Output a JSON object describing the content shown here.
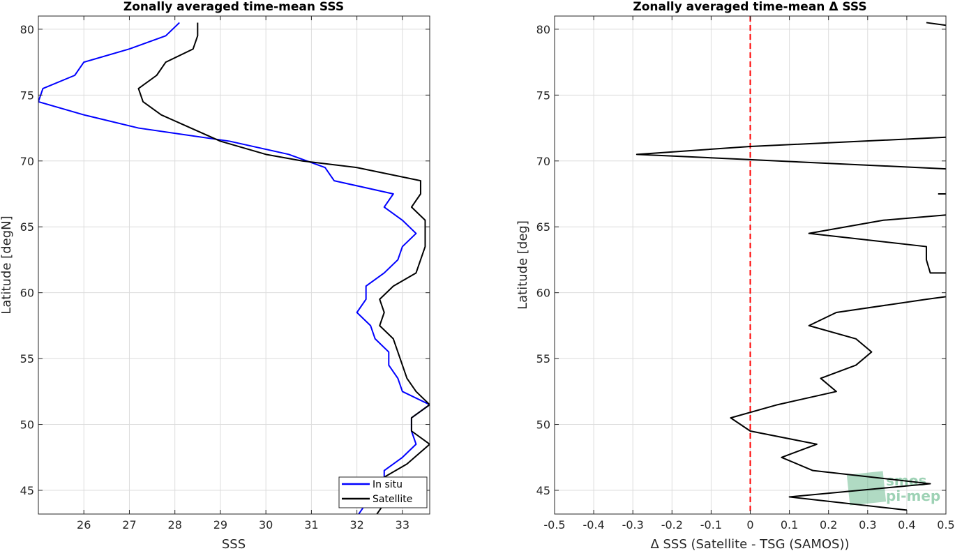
{
  "chart_data": [
    {
      "type": "line",
      "title": "Zonally averaged time-mean SSS",
      "xlabel": "SSS",
      "ylabel": "Latitude [degN]",
      "xlim": [
        25,
        33.6
      ],
      "ylim": [
        43.2,
        81
      ],
      "xticks": [
        26,
        27,
        28,
        29,
        30,
        31,
        32,
        33
      ],
      "yticks": [
        45,
        50,
        55,
        60,
        65,
        70,
        75,
        80
      ],
      "grid": true,
      "legend_position": "bottom-right",
      "series": [
        {
          "name": "In situ",
          "color": "#0000ff",
          "points": [
            [
              32.0,
              43.0
            ],
            [
              32.2,
              44.0
            ],
            [
              32.5,
              44.5
            ],
            [
              32.6,
              45.5
            ],
            [
              32.6,
              46.5
            ],
            [
              33.0,
              47.5
            ],
            [
              33.3,
              48.5
            ],
            [
              33.2,
              49.5
            ],
            [
              33.2,
              50.5
            ],
            [
              33.6,
              51.5
            ],
            [
              33.0,
              52.5
            ],
            [
              32.9,
              53.5
            ],
            [
              32.7,
              54.5
            ],
            [
              32.7,
              55.5
            ],
            [
              32.4,
              56.5
            ],
            [
              32.3,
              57.5
            ],
            [
              32.0,
              58.5
            ],
            [
              32.2,
              59.5
            ],
            [
              32.2,
              60.5
            ],
            [
              32.6,
              61.5
            ],
            [
              32.9,
              62.5
            ],
            [
              33.0,
              63.5
            ],
            [
              33.3,
              64.5
            ],
            [
              33.0,
              65.5
            ],
            [
              32.6,
              66.5
            ],
            [
              32.8,
              67.5
            ],
            [
              31.5,
              68.5
            ],
            [
              31.3,
              69.5
            ],
            [
              30.5,
              70.5
            ],
            [
              29.2,
              71.5
            ],
            [
              27.2,
              72.5
            ],
            [
              26.0,
              73.5
            ],
            [
              25.0,
              74.5
            ],
            [
              25.1,
              75.5
            ],
            [
              25.8,
              76.5
            ],
            [
              26.0,
              77.5
            ],
            [
              27.0,
              78.5
            ],
            [
              27.8,
              79.5
            ],
            [
              28.1,
              80.5
            ]
          ]
        },
        {
          "name": "Satellite",
          "color": "#000000",
          "points": [
            [
              32.4,
              43.0
            ],
            [
              32.6,
              44.0
            ],
            [
              32.5,
              45.0
            ],
            [
              32.6,
              46.0
            ],
            [
              33.1,
              47.0
            ],
            [
              33.6,
              48.5
            ],
            [
              33.2,
              49.5
            ],
            [
              33.2,
              50.5
            ],
            [
              33.6,
              51.5
            ],
            [
              33.3,
              52.5
            ],
            [
              33.1,
              53.5
            ],
            [
              33.0,
              54.5
            ],
            [
              32.9,
              55.5
            ],
            [
              32.8,
              56.5
            ],
            [
              32.5,
              57.5
            ],
            [
              32.6,
              58.5
            ],
            [
              32.5,
              59.5
            ],
            [
              32.8,
              60.5
            ],
            [
              33.3,
              61.5
            ],
            [
              33.4,
              62.5
            ],
            [
              33.5,
              63.5
            ],
            [
              33.5,
              64.5
            ],
            [
              33.5,
              65.5
            ],
            [
              33.2,
              66.5
            ],
            [
              33.4,
              67.5
            ],
            [
              33.4,
              68.5
            ],
            [
              32.0,
              69.5
            ],
            [
              30.8,
              70.0
            ],
            [
              30.0,
              70.5
            ],
            [
              29.0,
              71.5
            ],
            [
              27.7,
              73.5
            ],
            [
              27.3,
              74.5
            ],
            [
              27.2,
              75.5
            ],
            [
              27.6,
              76.5
            ],
            [
              27.8,
              77.5
            ],
            [
              28.4,
              78.5
            ],
            [
              28.5,
              79.5
            ],
            [
              28.5,
              80.5
            ]
          ]
        }
      ]
    },
    {
      "type": "line",
      "title": "Zonally averaged time-mean Δ SSS",
      "xlabel": "Δ SSS (Satellite - TSG (SAMOS))",
      "ylabel": "Latitude [deg]",
      "xlim": [
        -0.5,
        0.5
      ],
      "ylim": [
        43.2,
        81
      ],
      "xticks": [
        -0.5,
        -0.4,
        -0.3,
        -0.2,
        -0.1,
        0,
        0.1,
        0.2,
        0.3,
        0.4,
        0.5
      ],
      "yticks": [
        45,
        50,
        55,
        60,
        65,
        70,
        75,
        80
      ],
      "grid": true,
      "reference_line": {
        "x": 0,
        "color": "#ff0000",
        "style": "dashed"
      },
      "series": [
        {
          "color": "#000000",
          "segments": [
            [
              [
                0.4,
                43.5
              ],
              [
                0.1,
                44.5
              ],
              [
                0.46,
                45.5
              ],
              [
                0.16,
                46.5
              ],
              [
                0.08,
                47.5
              ],
              [
                0.17,
                48.5
              ],
              [
                0.0,
                49.5
              ],
              [
                -0.05,
                50.5
              ],
              [
                0.07,
                51.5
              ],
              [
                0.22,
                52.5
              ],
              [
                0.18,
                53.5
              ],
              [
                0.27,
                54.5
              ],
              [
                0.31,
                55.5
              ],
              [
                0.27,
                56.5
              ],
              [
                0.15,
                57.5
              ],
              [
                0.22,
                58.5
              ],
              [
                0.45,
                59.5
              ],
              [
                0.5,
                59.7
              ]
            ],
            [
              [
                0.5,
                61.5
              ],
              [
                0.46,
                61.5
              ],
              [
                0.45,
                62.5
              ],
              [
                0.45,
                63.5
              ],
              [
                0.15,
                64.5
              ],
              [
                0.34,
                65.5
              ],
              [
                0.5,
                65.9
              ]
            ],
            [
              [
                0.48,
                67.5
              ],
              [
                0.5,
                67.5
              ]
            ],
            [
              [
                0.5,
                69.4
              ],
              [
                0.0,
                70.1
              ],
              [
                -0.29,
                70.5
              ],
              [
                0.0,
                71.1
              ],
              [
                0.5,
                71.8
              ]
            ],
            [
              [
                0.45,
                80.5
              ],
              [
                0.5,
                80.3
              ]
            ]
          ]
        }
      ]
    }
  ],
  "watermark": {
    "line1": "smos",
    "line2": "pi-mep"
  },
  "colors": {
    "grid": "#dcdcdc",
    "axis": "#262626",
    "logo": "#4fae7a"
  }
}
